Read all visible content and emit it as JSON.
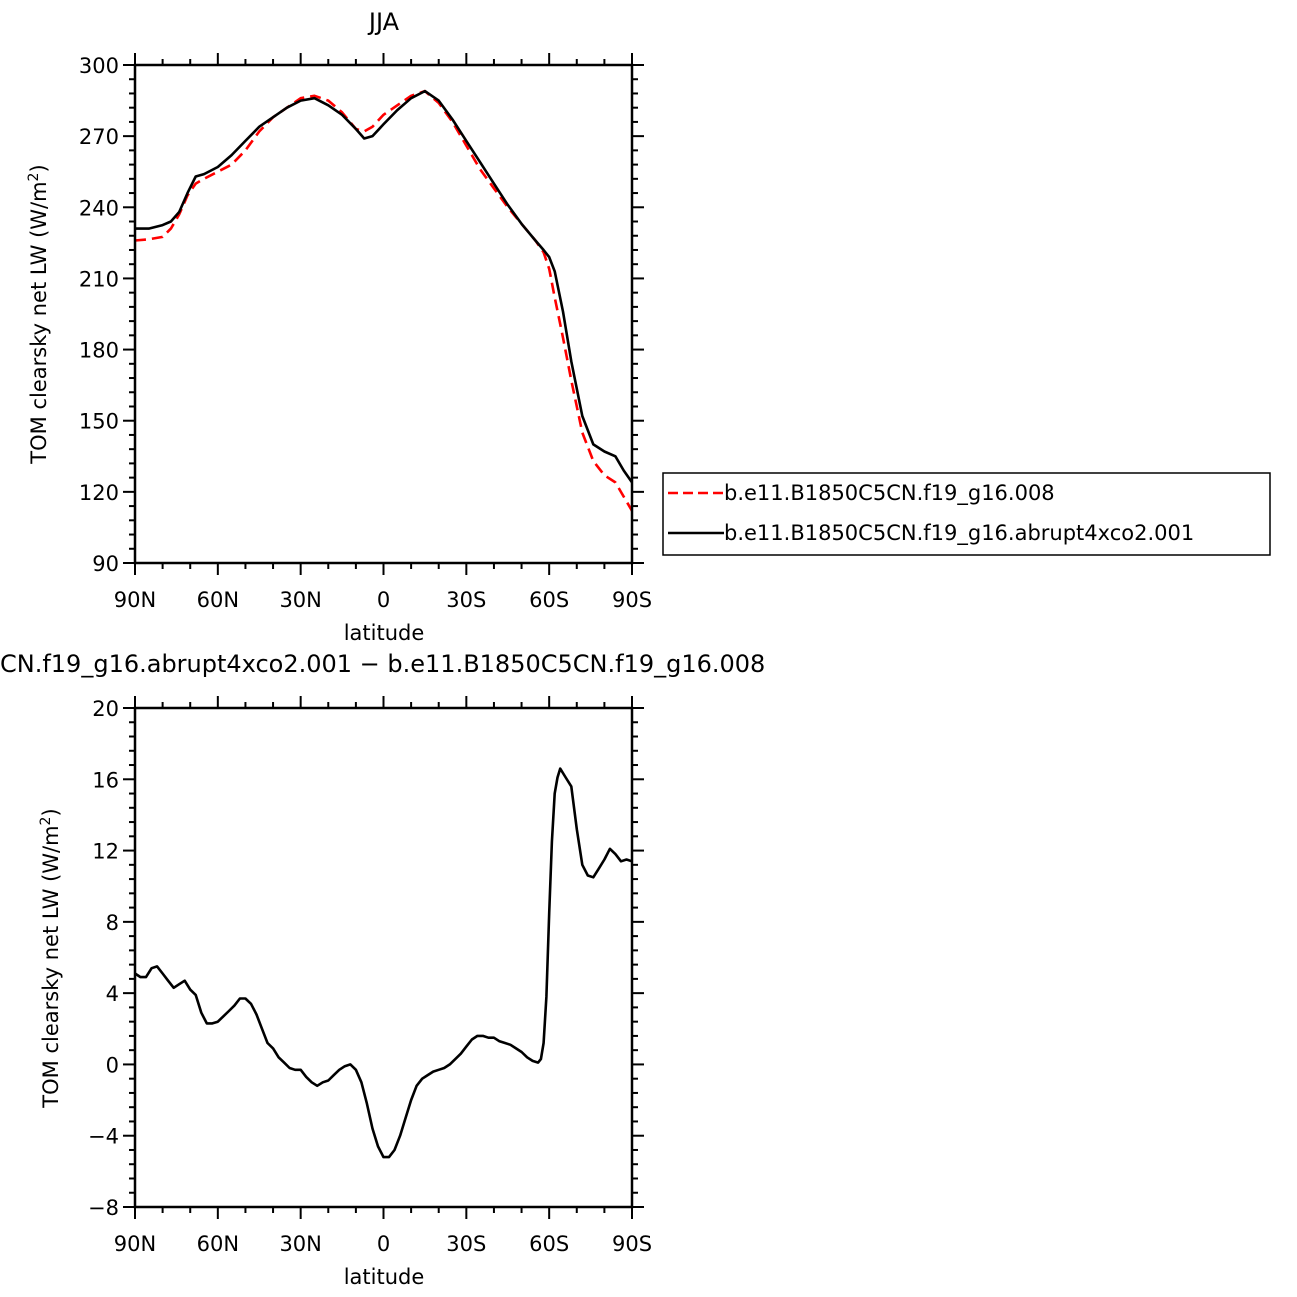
{
  "chart_data": [
    {
      "type": "line",
      "title": "JJA",
      "xlabel": "latitude",
      "ylabel": "TOM clearsky net LW (W/m²)",
      "ylabel_main": "TOM clearsky net LW (W/m",
      "ylabel_sup": "2",
      "ylabel_close": ")",
      "xlim": [
        -90,
        90
      ],
      "ylim": [
        90,
        300
      ],
      "x_ticks": [
        -90,
        -60,
        -30,
        0,
        30,
        60,
        90
      ],
      "x_tick_labels": [
        "90N",
        "60N",
        "30N",
        "0",
        "30S",
        "60S",
        "90S"
      ],
      "y_ticks": [
        90,
        120,
        150,
        180,
        210,
        240,
        270,
        300
      ],
      "y_tick_labels": [
        "90",
        "120",
        "150",
        "180",
        "210",
        "240",
        "270",
        "300"
      ],
      "legend_position": "right",
      "series": [
        {
          "name": "b.e11.B1850C5CN.f19_g16.008",
          "color": "#ff0000",
          "style": "dashed",
          "x": [
            -90,
            -85,
            -80,
            -77,
            -74,
            -71,
            -68,
            -65,
            -60,
            -55,
            -50,
            -45,
            -40,
            -35,
            -30,
            -25,
            -20,
            -15,
            -10,
            -7,
            -4,
            0,
            5,
            10,
            15,
            20,
            25,
            30,
            35,
            40,
            45,
            50,
            55,
            58,
            60,
            62,
            65,
            68,
            72,
            76,
            80,
            84,
            87,
            90
          ],
          "y": [
            226,
            226.5,
            227.5,
            231,
            237,
            245,
            250,
            252,
            255,
            258,
            264,
            272,
            278,
            282,
            286,
            287,
            285,
            280,
            273,
            272,
            274,
            279,
            283,
            287,
            289,
            284,
            276,
            266,
            256,
            248,
            240,
            233,
            226,
            221,
            214,
            202,
            185,
            167,
            145,
            133,
            127,
            124,
            118,
            112
          ]
        },
        {
          "name": "b.e11.B1850C5CN.f19_g16.abrupt4xco2.001",
          "color": "#000000",
          "style": "solid",
          "x": [
            -90,
            -85,
            -80,
            -77,
            -74,
            -71,
            -68,
            -65,
            -60,
            -55,
            -50,
            -45,
            -40,
            -35,
            -30,
            -25,
            -20,
            -15,
            -10,
            -7,
            -4,
            0,
            5,
            10,
            15,
            20,
            25,
            30,
            35,
            40,
            45,
            50,
            55,
            58,
            60,
            62,
            65,
            68,
            72,
            76,
            80,
            84,
            87,
            90
          ],
          "y": [
            231,
            231,
            232.5,
            234,
            238,
            246,
            253,
            254,
            257,
            262,
            268,
            274,
            278,
            282,
            285,
            286,
            283,
            279,
            273,
            269,
            270,
            275,
            281,
            286,
            289,
            285,
            277,
            268,
            259,
            250,
            241,
            233,
            226,
            222,
            219,
            213,
            196,
            175,
            152,
            140,
            137,
            135,
            129,
            124
          ]
        }
      ]
    },
    {
      "type": "line",
      "title": "CN.f19_g16.abrupt4xco2.001 − b.e11.B1850C5CN.f19_g16.008",
      "xlabel": "latitude",
      "ylabel": "TOM clearsky net LW (W/m²)",
      "ylabel_main": "TOM clearsky net LW (W/m",
      "ylabel_sup": "2",
      "ylabel_close": ")",
      "xlim": [
        -90,
        90
      ],
      "ylim": [
        -8,
        20
      ],
      "x_ticks": [
        -90,
        -60,
        -30,
        0,
        30,
        60,
        90
      ],
      "x_tick_labels": [
        "90N",
        "60N",
        "30N",
        "0",
        "30S",
        "60S",
        "90S"
      ],
      "y_ticks": [
        -8,
        -4,
        0,
        4,
        8,
        12,
        16,
        20
      ],
      "y_tick_labels": [
        "−8",
        "−4",
        "0",
        "4",
        "8",
        "12",
        "16",
        "20"
      ],
      "series": [
        {
          "color": "#000000",
          "style": "solid",
          "x": [
            -90,
            -88,
            -86,
            -84,
            -82,
            -80,
            -78,
            -76,
            -74,
            -72,
            -70,
            -68,
            -66,
            -64,
            -62,
            -60,
            -58,
            -56,
            -54,
            -52,
            -50,
            -48,
            -46,
            -44,
            -42,
            -40,
            -38,
            -36,
            -34,
            -32,
            -30,
            -28,
            -26,
            -24,
            -22,
            -20,
            -18,
            -16,
            -14,
            -12,
            -10,
            -8,
            -6,
            -4,
            -2,
            0,
            2,
            4,
            6,
            8,
            10,
            12,
            14,
            16,
            18,
            20,
            22,
            24,
            26,
            28,
            30,
            32,
            34,
            36,
            38,
            40,
            42,
            44,
            46,
            48,
            50,
            52,
            54,
            56,
            57,
            58,
            59,
            60,
            61,
            62,
            63,
            64,
            66,
            68,
            70,
            72,
            74,
            76,
            78,
            80,
            82,
            84,
            86,
            88,
            90
          ],
          "y": [
            5.1,
            4.9,
            4.9,
            5.4,
            5.5,
            5.1,
            4.7,
            4.3,
            4.5,
            4.7,
            4.2,
            3.9,
            2.9,
            2.3,
            2.3,
            2.4,
            2.7,
            3.0,
            3.3,
            3.7,
            3.7,
            3.4,
            2.8,
            2.0,
            1.2,
            0.9,
            0.4,
            0.1,
            -0.2,
            -0.3,
            -0.3,
            -0.7,
            -1.0,
            -1.2,
            -1.0,
            -0.9,
            -0.6,
            -0.3,
            -0.1,
            0.0,
            -0.3,
            -1.0,
            -2.2,
            -3.6,
            -4.6,
            -5.2,
            -5.2,
            -4.8,
            -4.0,
            -3.0,
            -2.0,
            -1.2,
            -0.8,
            -0.6,
            -0.4,
            -0.3,
            -0.2,
            0.0,
            0.3,
            0.6,
            1.0,
            1.4,
            1.6,
            1.6,
            1.5,
            1.5,
            1.3,
            1.2,
            1.1,
            0.9,
            0.7,
            0.4,
            0.2,
            0.1,
            0.3,
            1.2,
            3.8,
            8.5,
            12.5,
            15.2,
            16.1,
            16.6,
            16.1,
            15.6,
            13.2,
            11.2,
            10.6,
            10.5,
            11.0,
            11.5,
            12.1,
            11.8,
            11.4,
            11.5,
            11.4
          ]
        }
      ]
    }
  ]
}
